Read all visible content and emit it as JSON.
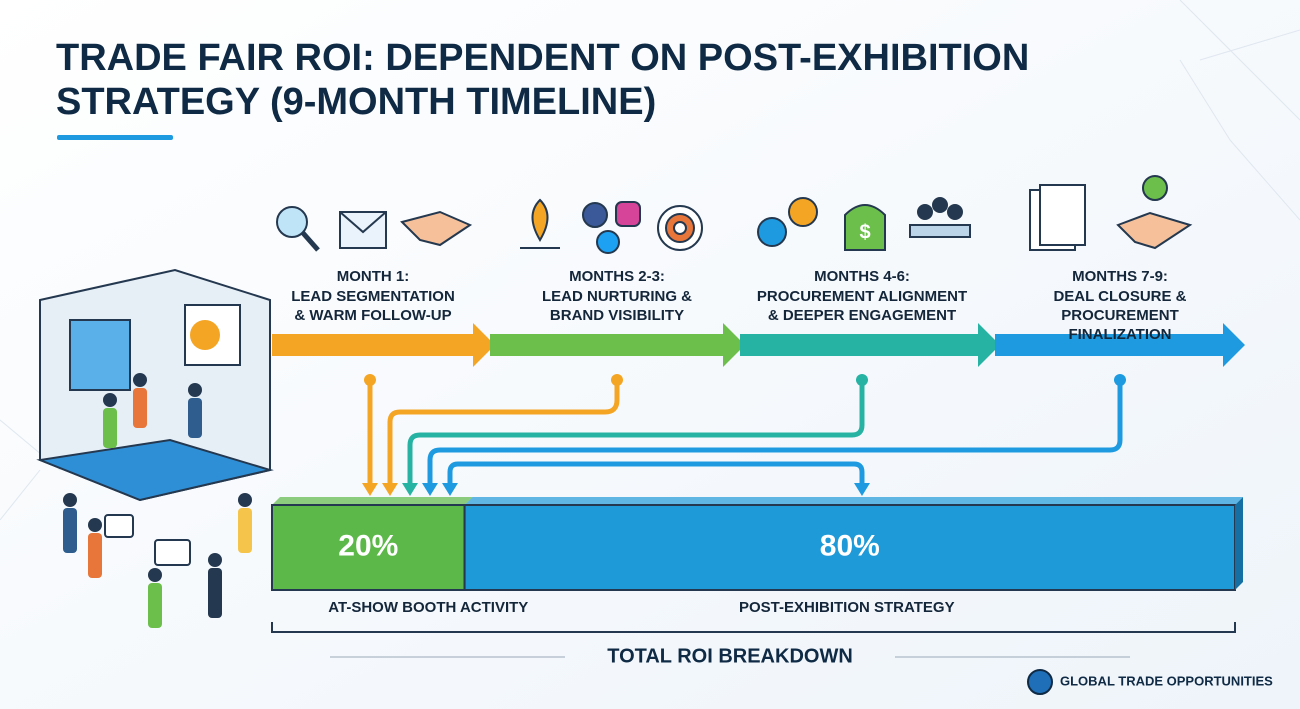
{
  "title_lines": [
    "TRADE FAIR ROI: DEPENDENT ON POST-EXHIBITION",
    "STRATEGY (9-MONTH TIMELINE)"
  ],
  "stages": [
    {
      "period": "MONTH 1:",
      "label_lines": [
        "LEAD SEGMENTATION",
        "& WARM FOLLOW-UP"
      ],
      "color": "#f5a524"
    },
    {
      "period": "MONTHS 2-3:",
      "label_lines": [
        "LEAD NURTURING &",
        "BRAND VISIBILITY"
      ],
      "color": "#6cbf4b"
    },
    {
      "period": "MONTHS 4-6:",
      "label_lines": [
        "PROCUREMENT ALIGNMENT",
        "& DEEPER ENGAGEMENT"
      ],
      "color": "#27b3a3"
    },
    {
      "period": "MONTHS 7-9:",
      "label_lines": [
        "DEAL CLOSURE &",
        "PROCUREMENT",
        "FINALIZATION"
      ],
      "color": "#1e9be0"
    }
  ],
  "segments": [
    {
      "value": 20,
      "value_label": "20%",
      "label": "AT-SHOW BOOTH ACTIVITY",
      "color": "#5cb848"
    },
    {
      "value": 80,
      "value_label": "80%",
      "label": "POST-EXHIBITION STRATEGY",
      "color": "#1f9ad8"
    }
  ],
  "total_label": "TOTAL ROI BREAKDOWN",
  "brand": "GLOBAL TRADE OPPORTUNITIES"
}
